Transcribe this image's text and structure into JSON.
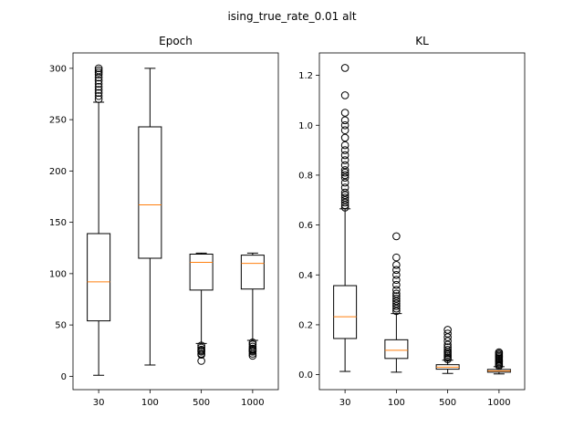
{
  "figure": {
    "title": "ising_true_rate_0.01 alt"
  },
  "chart_data": [
    {
      "type": "box",
      "title": "Epoch",
      "categories": [
        "30",
        "100",
        "500",
        "1000"
      ],
      "ylim": [
        -13,
        315
      ],
      "yticks": [
        0,
        50,
        100,
        150,
        200,
        250,
        300
      ],
      "ytick_labels": [
        "0",
        "50",
        "100",
        "150",
        "200",
        "250",
        "300"
      ],
      "boxes": [
        {
          "label": "30",
          "whislo": 1,
          "q1": 54,
          "med": 92,
          "q3": 139,
          "whishi": 267,
          "fliers": [
            270,
            273,
            276,
            279,
            282,
            285,
            288,
            291,
            294,
            296,
            298,
            300
          ]
        },
        {
          "label": "100",
          "whislo": 11,
          "q1": 115,
          "med": 167,
          "q3": 243,
          "whishi": 300,
          "fliers": []
        },
        {
          "label": "500",
          "whislo": 32,
          "q1": 84,
          "med": 111,
          "q3": 119,
          "whishi": 120,
          "fliers": [
            30,
            28,
            26,
            25,
            24,
            22,
            21,
            15
          ]
        },
        {
          "label": "1000",
          "whislo": 35,
          "q1": 85,
          "med": 110,
          "q3": 118,
          "whishi": 120,
          "fliers": [
            33,
            31,
            29,
            27,
            26,
            25,
            24,
            22,
            20
          ]
        }
      ]
    },
    {
      "type": "box",
      "title": "KL",
      "categories": [
        "30",
        "100",
        "500",
        "1000"
      ],
      "ylim": [
        -0.06,
        1.29
      ],
      "yticks": [
        0.0,
        0.2,
        0.4,
        0.6,
        0.8,
        1.0,
        1.2
      ],
      "ytick_labels": [
        "0.0",
        "0.2",
        "0.4",
        "0.6",
        "0.8",
        "1.0",
        "1.2"
      ],
      "boxes": [
        {
          "label": "30",
          "whislo": 0.013,
          "q1": 0.145,
          "med": 0.232,
          "q3": 0.357,
          "whishi": 0.665,
          "fliers": [
            0.67,
            0.68,
            0.69,
            0.7,
            0.71,
            0.72,
            0.73,
            0.75,
            0.77,
            0.79,
            0.8,
            0.81,
            0.82,
            0.84,
            0.86,
            0.88,
            0.9,
            0.92,
            0.95,
            0.98,
            1.0,
            1.02,
            1.05,
            1.12,
            1.23
          ]
        },
        {
          "label": "100",
          "whislo": 0.01,
          "q1": 0.065,
          "med": 0.098,
          "q3": 0.14,
          "whishi": 0.245,
          "fliers": [
            0.255,
            0.265,
            0.275,
            0.285,
            0.295,
            0.305,
            0.315,
            0.325,
            0.34,
            0.36,
            0.38,
            0.4,
            0.42,
            0.44,
            0.47,
            0.555
          ]
        },
        {
          "label": "500",
          "whislo": 0.005,
          "q1": 0.022,
          "med": 0.03,
          "q3": 0.04,
          "whishi": 0.058,
          "fliers": [
            0.062,
            0.068,
            0.074,
            0.08,
            0.086,
            0.092,
            0.1,
            0.11,
            0.12,
            0.135,
            0.15,
            0.165,
            0.18
          ]
        },
        {
          "label": "1000",
          "whislo": 0.003,
          "q1": 0.01,
          "med": 0.015,
          "q3": 0.021,
          "whishi": 0.032,
          "fliers": [
            0.035,
            0.04,
            0.045,
            0.05,
            0.055,
            0.06,
            0.065,
            0.07,
            0.075,
            0.08,
            0.085,
            0.09
          ]
        }
      ]
    }
  ]
}
